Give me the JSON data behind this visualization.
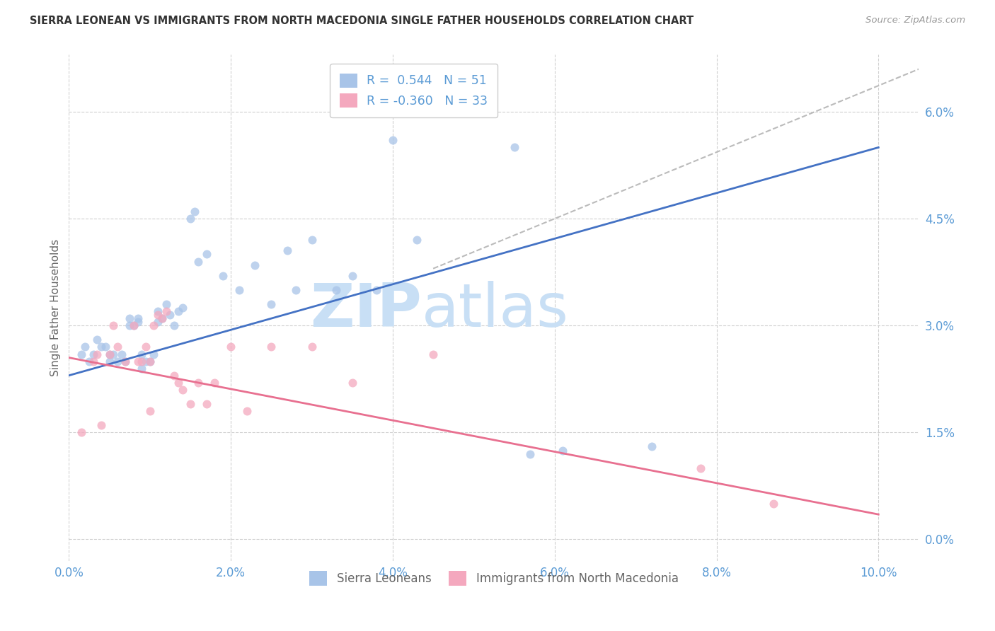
{
  "title": "SIERRA LEONEAN VS IMMIGRANTS FROM NORTH MACEDONIA SINGLE FATHER HOUSEHOLDS CORRELATION CHART",
  "source": "Source: ZipAtlas.com",
  "ylabel": "Single Father Households",
  "ytick_values": [
    0.0,
    1.5,
    3.0,
    4.5,
    6.0
  ],
  "xtick_values": [
    0.0,
    2.0,
    4.0,
    6.0,
    8.0,
    10.0
  ],
  "xlim": [
    0.0,
    10.5
  ],
  "ylim": [
    -0.3,
    6.8
  ],
  "legend_entry1": {
    "R": "0.544",
    "N": "51",
    "color": "#a8c4e8"
  },
  "legend_entry2": {
    "R": "-0.360",
    "N": "33",
    "color": "#f4a8be"
  },
  "sierra_leonean_x": [
    0.15,
    0.2,
    0.25,
    0.3,
    0.35,
    0.4,
    0.45,
    0.5,
    0.5,
    0.55,
    0.6,
    0.65,
    0.7,
    0.75,
    0.75,
    0.8,
    0.85,
    0.85,
    0.9,
    0.9,
    0.95,
    1.0,
    1.05,
    1.1,
    1.1,
    1.15,
    1.2,
    1.25,
    1.3,
    1.35,
    1.4,
    1.5,
    1.55,
    1.6,
    1.7,
    1.9,
    2.1,
    2.3,
    2.5,
    2.7,
    2.8,
    3.0,
    3.3,
    3.5,
    3.8,
    4.0,
    4.3,
    5.5,
    5.7,
    6.1,
    7.2
  ],
  "sierra_leonean_y": [
    2.6,
    2.7,
    2.5,
    2.6,
    2.8,
    2.7,
    2.7,
    2.6,
    2.5,
    2.6,
    2.5,
    2.6,
    2.5,
    3.0,
    3.1,
    3.0,
    3.05,
    3.1,
    2.4,
    2.6,
    2.5,
    2.5,
    2.6,
    3.05,
    3.2,
    3.1,
    3.3,
    3.15,
    3.0,
    3.2,
    3.25,
    4.5,
    4.6,
    3.9,
    4.0,
    3.7,
    3.5,
    3.85,
    3.3,
    4.05,
    3.5,
    4.2,
    3.5,
    3.7,
    3.5,
    5.6,
    4.2,
    5.5,
    1.2,
    1.25,
    1.3
  ],
  "north_macedonia_x": [
    0.15,
    0.3,
    0.35,
    0.4,
    0.5,
    0.55,
    0.6,
    0.7,
    0.8,
    0.85,
    0.9,
    0.95,
    1.0,
    1.0,
    1.05,
    1.1,
    1.15,
    1.2,
    1.3,
    1.35,
    1.4,
    1.5,
    1.6,
    1.7,
    1.8,
    2.0,
    2.2,
    2.5,
    3.0,
    3.5,
    4.5,
    7.8,
    8.7
  ],
  "north_macedonia_y": [
    1.5,
    2.5,
    2.6,
    1.6,
    2.6,
    3.0,
    2.7,
    2.5,
    3.0,
    2.5,
    2.5,
    2.7,
    2.5,
    1.8,
    3.0,
    3.15,
    3.1,
    3.2,
    2.3,
    2.2,
    2.1,
    1.9,
    2.2,
    1.9,
    2.2,
    2.7,
    1.8,
    2.7,
    2.7,
    2.2,
    2.6,
    1.0,
    0.5
  ],
  "blue_line_x0": 0.0,
  "blue_line_x1": 10.0,
  "blue_line_y0": 2.3,
  "blue_line_y1": 5.5,
  "pink_line_x0": 0.0,
  "pink_line_x1": 10.0,
  "pink_line_y0": 2.55,
  "pink_line_y1": 0.35,
  "gray_x0": 4.5,
  "gray_x1": 10.5,
  "gray_y0": 3.8,
  "gray_y1": 6.6,
  "watermark_zip": "ZIP",
  "watermark_atlas": "atlas",
  "watermark_color": "#c8dff5",
  "bg_color": "#ffffff",
  "grid_color": "#d0d0d0",
  "title_color": "#333333",
  "blue_dot_color": "#a8c4e8",
  "pink_dot_color": "#f4a8be",
  "blue_line_color": "#4472c4",
  "pink_line_color": "#e87090",
  "axis_label_color": "#5b9bd5",
  "dot_size": 75,
  "dot_alpha": 0.75
}
